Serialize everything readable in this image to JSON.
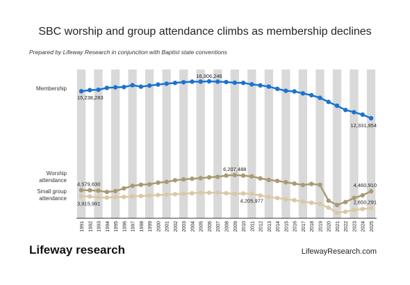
{
  "chart_data": {
    "type": "line",
    "title": "SBC worship and group attendance climbs as membership declines",
    "subtitle": "Prepared by Lifeway Research in conjunction with Baptist state conventions",
    "brand": "Lifeway research",
    "website": "LifewayResearch.com",
    "categories": [
      "1991",
      "1992",
      "1993",
      "1994",
      "1995",
      "1996",
      "1997",
      "1998",
      "1999",
      "2000",
      "2001",
      "2002",
      "2003",
      "2004",
      "2005",
      "2006",
      "2007",
      "2008",
      "2009",
      "2010",
      "2011",
      "2012",
      "2013",
      "2014",
      "2015",
      "2016",
      "2017",
      "2018",
      "2019",
      "2020",
      "2021",
      "2022",
      "2023",
      "2024",
      "2025"
    ],
    "series": [
      {
        "name": "Membership",
        "color": "#1a73d0",
        "values": [
          15238283,
          15360000,
          15400000,
          15600000,
          15660000,
          15690000,
          15890000,
          15730000,
          15850000,
          15960000,
          16050000,
          16140000,
          16210000,
          16270000,
          16270000,
          16306246,
          16270000,
          16230000,
          16160000,
          16140000,
          15980000,
          15870000,
          15740000,
          15500000,
          15290000,
          15220000,
          15010000,
          14810000,
          14530000,
          14090000,
          13680000,
          13220000,
          12980000,
          12720000,
          12331954
        ],
        "value_labels": [
          "15,238,283",
          null,
          null,
          null,
          null,
          null,
          null,
          null,
          null,
          null,
          null,
          null,
          null,
          null,
          null,
          "16,306,246",
          null,
          null,
          null,
          null,
          null,
          null,
          null,
          null,
          null,
          null,
          null,
          null,
          null,
          null,
          null,
          null,
          null,
          null,
          "12,331,954"
        ]
      },
      {
        "name": "Worship attendance",
        "color": "#a89a72",
        "values": [
          4579630,
          4570000,
          4520000,
          4390000,
          4480000,
          4770000,
          5050000,
          5160000,
          5210000,
          5390000,
          5470000,
          5650000,
          5740000,
          5810000,
          5870000,
          5960000,
          6020000,
          6150000,
          6207488,
          6150000,
          6070000,
          5850000,
          5680000,
          5580000,
          5430000,
          5290000,
          5140000,
          5250000,
          5150000,
          3450000,
          2980000,
          3300000,
          3740000,
          4020000,
          4460910
        ],
        "value_labels": [
          "4,579,630",
          null,
          null,
          null,
          null,
          null,
          null,
          null,
          null,
          null,
          null,
          null,
          null,
          null,
          null,
          null,
          null,
          null,
          "6,207,488",
          null,
          null,
          null,
          null,
          null,
          null,
          null,
          null,
          null,
          null,
          null,
          null,
          null,
          null,
          null,
          "4,460,910"
        ]
      },
      {
        "name": "Small group attendance",
        "color": "#d9c9a3",
        "values": [
          3915991,
          3900000,
          3800000,
          3780000,
          3830000,
          3850000,
          3900000,
          3950000,
          4000000,
          4050000,
          4100000,
          4150000,
          4200000,
          4250000,
          4300000,
          4300000,
          4310000,
          4250000,
          4200000,
          4220000,
          4205977,
          4000000,
          3850000,
          3730000,
          3600000,
          3500000,
          3340000,
          3220000,
          3100000,
          2700000,
          2150000,
          2250000,
          2450000,
          2550000,
          2650291
        ],
        "value_labels": [
          "3,915,991",
          null,
          null,
          null,
          null,
          null,
          null,
          null,
          null,
          null,
          null,
          null,
          null,
          null,
          null,
          null,
          null,
          null,
          null,
          null,
          "4,205,977",
          null,
          null,
          null,
          null,
          null,
          null,
          null,
          null,
          null,
          null,
          null,
          null,
          null,
          "2,650,291"
        ]
      }
    ]
  }
}
